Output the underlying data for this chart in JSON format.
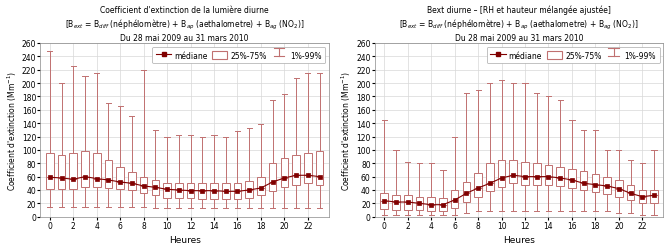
{
  "left_title1": "Coefficient d'extinction de la lumière diurne",
  "left_title2": "[B$_{ext}$ = B$_{diff}$ (néphélomètre) + B$_{ap}$ (aethalometre) + B$_{ag}$ (NO$_2$)]",
  "left_title3": "Du 28 mai 2009 au 31 mars 2010",
  "right_title1": "Bext diurne – [RH et hauteur mélangée ajustée]",
  "right_title2": "[B$_{ext}$ = B$_{diff}$ (néphélomètre) + B$_{ap}$ (aethalometre) + B$_{ag}$ (NO$_2$)]",
  "right_title3": "Du 28 mai 2009 au 31 mars 2010",
  "xlabel": "Heures",
  "ylabel": "Coefficient d'extinction (Mm$^{-1}$)",
  "hours": [
    0,
    1,
    2,
    3,
    4,
    5,
    6,
    7,
    8,
    9,
    10,
    11,
    12,
    13,
    14,
    15,
    16,
    17,
    18,
    19,
    20,
    21,
    22,
    23
  ],
  "left": {
    "median": [
      59,
      58,
      56,
      60,
      57,
      55,
      52,
      50,
      46,
      44,
      41,
      40,
      39,
      39,
      39,
      38,
      38,
      40,
      43,
      52,
      58,
      62,
      62,
      60
    ],
    "q25": [
      42,
      42,
      42,
      44,
      44,
      43,
      42,
      40,
      35,
      32,
      28,
      28,
      28,
      27,
      27,
      26,
      26,
      28,
      32,
      38,
      45,
      48,
      50,
      48
    ],
    "q75": [
      95,
      93,
      95,
      98,
      95,
      85,
      75,
      67,
      60,
      55,
      50,
      50,
      50,
      50,
      50,
      50,
      50,
      53,
      60,
      80,
      88,
      92,
      95,
      98
    ],
    "p1": [
      15,
      15,
      15,
      15,
      15,
      15,
      15,
      15,
      15,
      13,
      13,
      13,
      13,
      13,
      13,
      13,
      13,
      13,
      13,
      13,
      13,
      13,
      13,
      13
    ],
    "p99": [
      248,
      200,
      225,
      210,
      215,
      170,
      165,
      150,
      220,
      130,
      120,
      122,
      122,
      120,
      122,
      120,
      128,
      133,
      138,
      175,
      183,
      208,
      215,
      215
    ]
  },
  "right": {
    "median": [
      24,
      22,
      22,
      20,
      18,
      18,
      25,
      35,
      43,
      50,
      58,
      62,
      60,
      60,
      60,
      58,
      55,
      50,
      48,
      46,
      42,
      35,
      30,
      32
    ],
    "q25": [
      12,
      10,
      10,
      10,
      8,
      8,
      13,
      22,
      30,
      38,
      45,
      50,
      48,
      48,
      47,
      46,
      43,
      40,
      37,
      34,
      30,
      25,
      20,
      20
    ],
    "q75": [
      35,
      33,
      32,
      30,
      30,
      28,
      40,
      52,
      65,
      80,
      85,
      85,
      82,
      80,
      78,
      75,
      72,
      68,
      64,
      60,
      55,
      48,
      40,
      40
    ],
    "p1": [
      2,
      2,
      2,
      2,
      2,
      2,
      2,
      5,
      8,
      8,
      8,
      8,
      8,
      8,
      8,
      8,
      8,
      8,
      8,
      8,
      5,
      5,
      3,
      3
    ],
    "p99": [
      145,
      100,
      82,
      80,
      80,
      70,
      120,
      185,
      190,
      200,
      205,
      200,
      200,
      185,
      180,
      175,
      145,
      130,
      130,
      100,
      100,
      85,
      80,
      100
    ]
  },
  "ylim": [
    0,
    260
  ],
  "yticks": [
    0,
    20,
    40,
    60,
    80,
    100,
    120,
    140,
    160,
    180,
    200,
    220,
    240,
    260
  ],
  "box_color": "#c07070",
  "box_facecolor": "#ffffff",
  "median_color": "#800000",
  "whisker_color": "#c07070",
  "grid_color": "#d8d8d8",
  "bg_color": "#ffffff"
}
